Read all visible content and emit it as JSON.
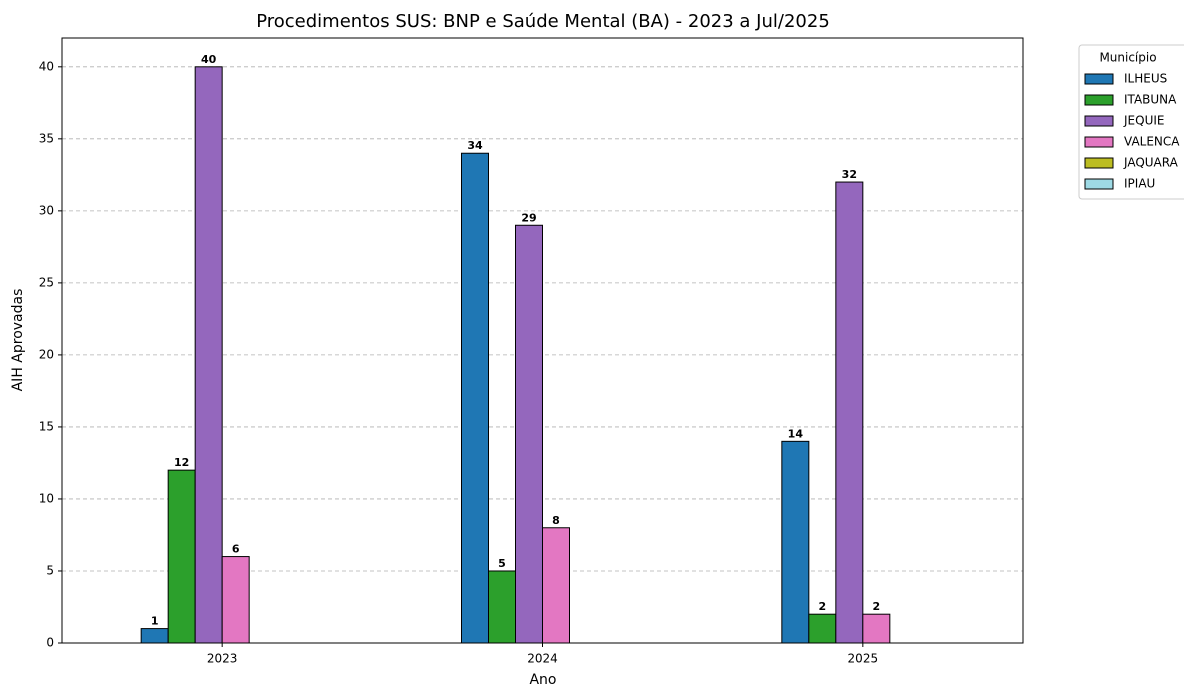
{
  "chart_data": {
    "type": "bar",
    "title": "Procedimentos SUS: BNP e Saúde Mental (BA) - 2023 a Jul/2025",
    "x_label": "Ano",
    "y_label": "AIH Aprovadas",
    "categories": [
      "2023",
      "2024",
      "2025"
    ],
    "series": [
      {
        "name": "ILHEUS",
        "color": "#1f77b4",
        "values": [
          1,
          34,
          14
        ]
      },
      {
        "name": "ITABUNA",
        "color": "#2ca02c",
        "values": [
          12,
          5,
          2
        ]
      },
      {
        "name": "JEQUIE",
        "color": "#9467bd",
        "values": [
          40,
          29,
          32
        ]
      },
      {
        "name": "VALENCA",
        "color": "#e377c2",
        "values": [
          6,
          8,
          2
        ]
      },
      {
        "name": "JAQUARA",
        "color": "#bcbd22",
        "values": [
          0,
          0,
          0
        ]
      },
      {
        "name": "IPIAU",
        "color": "#9edae5",
        "values": [
          0,
          0,
          0
        ]
      }
    ],
    "legend_title": "Município",
    "legend": "outside-upper-right",
    "ylim": [
      0,
      42
    ],
    "yticks": [
      0,
      5,
      10,
      15,
      20,
      25,
      30,
      35,
      40
    ],
    "grid": true
  }
}
